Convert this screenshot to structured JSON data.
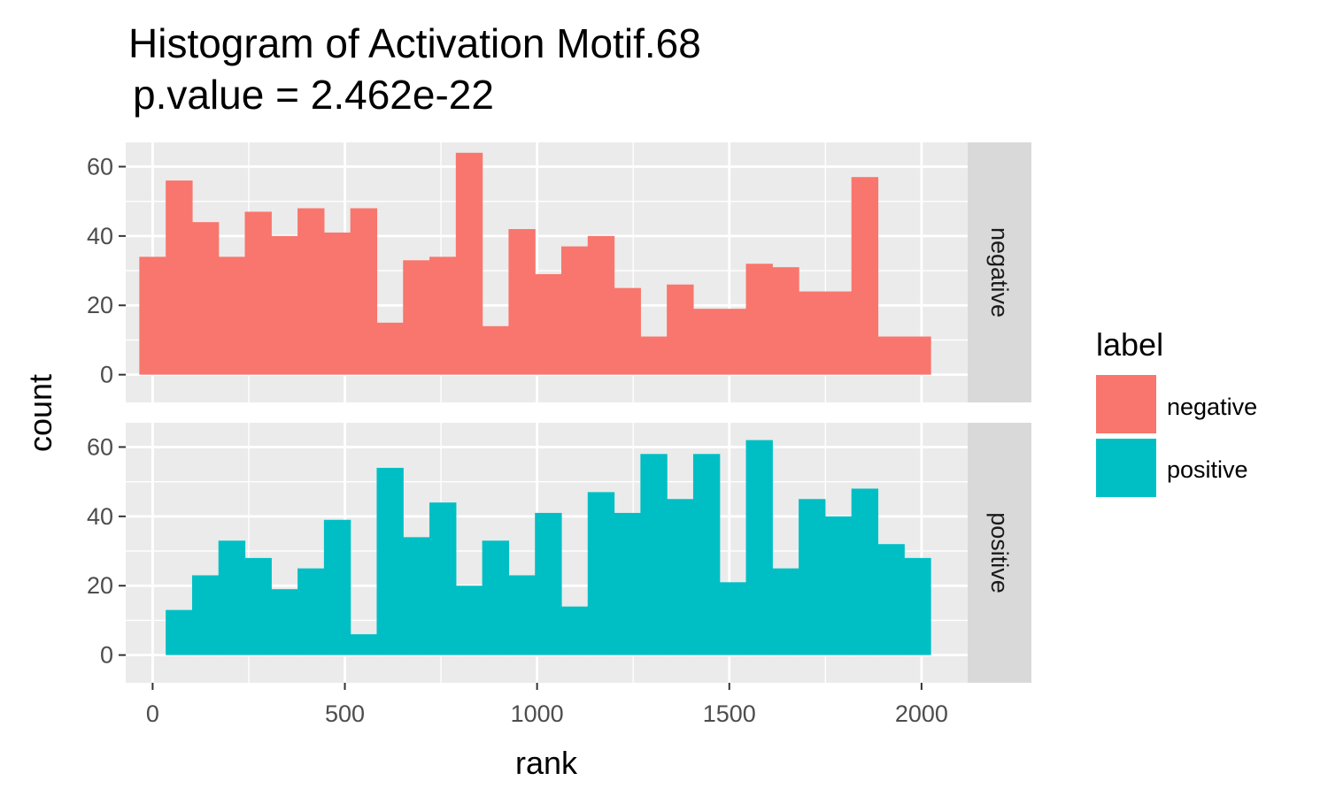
{
  "chart_data": {
    "type": "bar",
    "title": "Histogram of Activation Motif.68",
    "subtitle": "p.value =  2.462e-22",
    "xlabel": "rank",
    "ylabel": "count",
    "xlim": [
      -70,
      2120
    ],
    "ylim": [
      -8,
      67
    ],
    "x_ticks": [
      "0",
      "500",
      "1000",
      "1500",
      "2000"
    ],
    "y_ticks": [
      "0",
      "20",
      "40",
      "60"
    ],
    "grid": true,
    "legend": {
      "title": "label",
      "position": "right",
      "entries": [
        "negative",
        "positive"
      ]
    },
    "facet_strip_labels": [
      "negative",
      "positive"
    ],
    "colors": {
      "negative": "#F8766D",
      "positive": "#00BFC4"
    },
    "bins": {
      "start": -34.6,
      "binwidth": 68.6,
      "centers": [
        -0.3,
        68.3,
        136.9,
        205.5,
        274.1,
        342.7,
        411.3,
        479.9,
        548.5,
        617.1,
        685.7,
        754.3,
        822.9,
        891.5,
        960.1,
        1028.7,
        1097.3,
        1165.9,
        1234.5,
        1303.1,
        1371.7,
        1440.3,
        1508.9,
        1577.5,
        1646.1,
        1714.7,
        1783.3,
        1851.9,
        1920.5,
        1989.1
      ]
    },
    "series": [
      {
        "name": "negative",
        "values": [
          34,
          56,
          44,
          34,
          47,
          40,
          48,
          41,
          48,
          15,
          33,
          34,
          64,
          14,
          42,
          29,
          37,
          40,
          25,
          11,
          26,
          19,
          19,
          32,
          31,
          24,
          24,
          57,
          11,
          11
        ]
      },
      {
        "name": "positive",
        "values": [
          0,
          13,
          23,
          33,
          28,
          19,
          25,
          39,
          6,
          54,
          34,
          44,
          20,
          33,
          23,
          41,
          14,
          47,
          41,
          58,
          45,
          58,
          21,
          62,
          25,
          45,
          40,
          48,
          32,
          28
        ]
      }
    ]
  }
}
